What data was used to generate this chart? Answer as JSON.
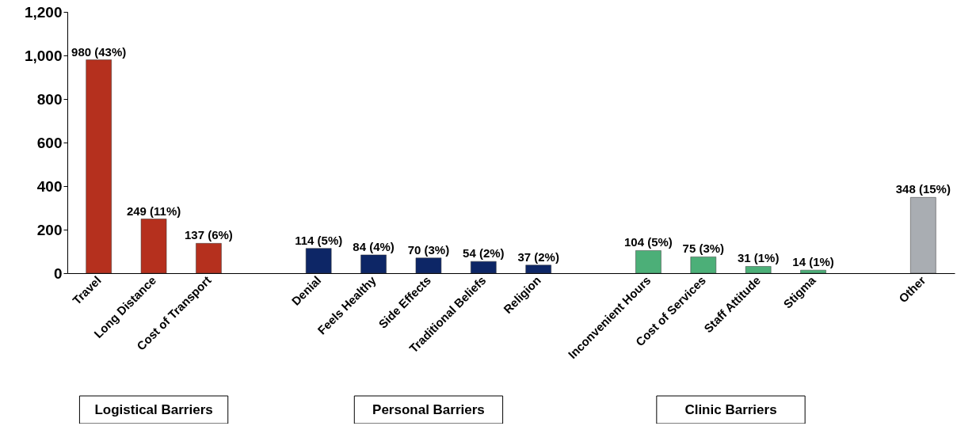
{
  "chart_data": {
    "type": "bar",
    "categories": [
      "Travel",
      "Long Distance",
      "Cost of Transport",
      null,
      "Denial",
      "Feels Healthy",
      "Side Effects",
      "Traditional Beliefs",
      "Religion",
      null,
      "Inconvenient Hours",
      "Cost of Services",
      "Staff Attitude",
      "Stigma",
      null,
      "Other"
    ],
    "values": [
      980,
      249,
      137,
      null,
      114,
      84,
      70,
      54,
      37,
      null,
      104,
      75,
      31,
      14,
      null,
      348
    ],
    "colors": [
      "#b5301e",
      "#b5301e",
      "#b5301e",
      null,
      "#0d2666",
      "#0d2666",
      "#0d2666",
      "#0d2666",
      "#0d2666",
      null,
      "#4caf78",
      "#4caf78",
      "#4caf78",
      "#4caf78",
      null,
      "#a9adb2"
    ],
    "value_labels": [
      "980 (43%)",
      "249 (11%)",
      "137 (6%)",
      null,
      "114 (5%)",
      "84 (4%)",
      "70 (3%)",
      "54 (2%)",
      "37 (2%)",
      null,
      "104 (5%)",
      "75 (3%)",
      "31 (1%)",
      "14 (1%)",
      null,
      "348 (15%)"
    ],
    "ylim": [
      0,
      1200
    ],
    "yticks": [
      0,
      200,
      400,
      600,
      800,
      {
        "value": 1000,
        "label": "1,000"
      },
      {
        "value": 1200,
        "label": "1,200"
      }
    ],
    "grid": false,
    "annotations": [
      "Logistical Barriers",
      "Personal Barriers",
      "Clinic Barriers"
    ]
  }
}
